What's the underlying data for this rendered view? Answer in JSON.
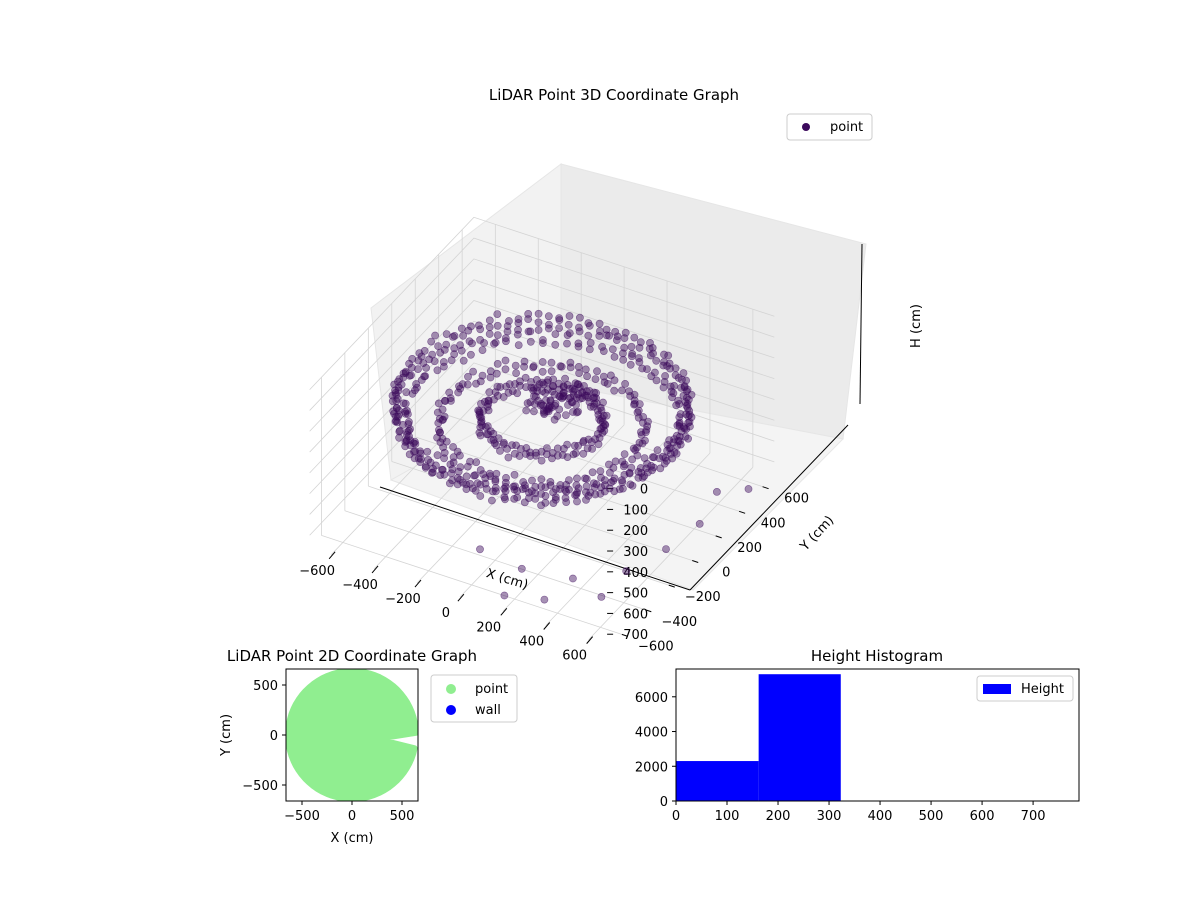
{
  "chart_data": [
    {
      "type": "scatter",
      "projection": "3d",
      "title": "LiDAR Point 3D Coordinate Graph",
      "xlabel": "X (cm)",
      "ylabel": "Y (cm)",
      "zlabel": "H (cm)",
      "x_ticks": [
        "−600",
        "−400",
        "−200",
        "0",
        "200",
        "400",
        "600"
      ],
      "y_ticks": [
        "−600",
        "−400",
        "−200",
        "0",
        "200",
        "400",
        "600"
      ],
      "z_ticks": [
        "0",
        "100",
        "200",
        "300",
        "400",
        "500",
        "600",
        "700"
      ],
      "xlim": [
        -700,
        700
      ],
      "ylim": [
        -700,
        700
      ],
      "zlim": [
        760,
        0
      ],
      "z_inverted": true,
      "grid": true,
      "legend": {
        "position": "top-right",
        "entries": [
          {
            "label": "point",
            "color": "#3c0a5c"
          }
        ]
      },
      "series": [
        {
          "name": "point",
          "color": "#3c0a5c",
          "description_of_shape": "dense ring of points at radius about 600 cm around the origin, mostly at heights 150-350 cm with sparse points down to about 730 cm",
          "rings": [
            {
              "radius": 600,
              "h": 230
            },
            {
              "radius": 560,
              "h": 300
            },
            {
              "radius": 420,
              "h": 330
            },
            {
              "radius": 250,
              "h": 300
            }
          ],
          "cluster": [
            {
              "x": 0,
              "y": 100,
              "h": 250
            },
            {
              "x": 50,
              "y": 50,
              "h": 280
            },
            {
              "x": -50,
              "y": 80,
              "h": 300
            },
            {
              "x": 100,
              "y": 150,
              "h": 260
            }
          ],
          "outliers": [
            {
              "x": 50,
              "y": -620,
              "h": 560
            },
            {
              "x": 250,
              "y": -630,
              "h": 580
            },
            {
              "x": 450,
              "y": -560,
              "h": 600
            },
            {
              "x": 600,
              "y": -380,
              "h": 620
            },
            {
              "x": 660,
              "y": -150,
              "h": 630
            },
            {
              "x": 680,
              "y": 100,
              "h": 650
            },
            {
              "x": 640,
              "y": 320,
              "h": 640
            },
            {
              "x": 180,
              "y": -650,
              "h": 720
            },
            {
              "x": 350,
              "y": -620,
              "h": 700
            },
            {
              "x": 700,
              "y": 480,
              "h": 700
            },
            {
              "x": 550,
              "y": -500,
              "h": 690
            }
          ]
        }
      ]
    },
    {
      "type": "scatter",
      "title": "LiDAR Point 2D Coordinate Graph",
      "xlabel": "X (cm)",
      "ylabel": "Y (cm)",
      "x_ticks": [
        -500,
        0,
        500
      ],
      "y_ticks": [
        -500,
        0,
        500
      ],
      "xlim": [
        -660,
        660
      ],
      "ylim": [
        -660,
        660
      ],
      "legend": {
        "position": "right-outside",
        "entries": [
          {
            "label": "point",
            "color": "#90ee90"
          },
          {
            "label": "wall",
            "color": "#0000ff"
          }
        ]
      },
      "series": [
        {
          "name": "point",
          "color": "#90ee90",
          "radius": 640,
          "gap_start_deg": -12,
          "gap_end_deg": 2
        },
        {
          "name": "wall",
          "color": "#0000ff",
          "points": []
        }
      ]
    },
    {
      "type": "bar",
      "subtype": "histogram",
      "title": "Height Histogram",
      "xlim": [
        0,
        790
      ],
      "ylim": [
        0,
        7600
      ],
      "x_ticks": [
        0,
        100,
        200,
        300,
        400,
        500,
        600,
        700
      ],
      "y_ticks": [
        0,
        2000,
        4000,
        6000
      ],
      "legend": {
        "position": "top-right",
        "entries": [
          {
            "label": "Height",
            "color": "#0000ff"
          }
        ]
      },
      "series": [
        {
          "name": "Height",
          "color": "#0000ff",
          "bins": [
            {
              "start": 0,
              "end": 162,
              "count": 2300
            },
            {
              "start": 162,
              "end": 323,
              "count": 7300
            },
            {
              "start": 323,
              "end": 485,
              "count": 0
            },
            {
              "start": 485,
              "end": 646,
              "count": 0
            },
            {
              "start": 646,
              "end": 790,
              "count": 0
            }
          ]
        }
      ]
    }
  ]
}
